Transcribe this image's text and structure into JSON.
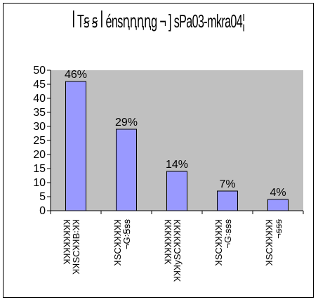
{
  "chart_data": {
    "type": "bar",
    "title": "ꟾ Tꞩ ꞩ ꟾ énsꞑꞑꞑꞑg ¬ ] sPa03-mkra04¦",
    "categories": [
      [
        "ꞰꞰꞰꞰꞰꞰꞰꞰ",
        "ꞰꞰSCꞰꞰB꞉ꞰꞰ"
      ],
      [
        "ꞰSCꞰꞰꞰꞰꞰ",
        "¬G꞉Ꞩꞩꞩ"
      ],
      [
        "ꞰꞰꞰꞰꞰꞰꞰꞰ",
        "ꞰꞰꞰySCꞰꞰꞰꞰꞰ"
      ],
      [
        "ꞰSCꞰꞰꞰꞰꞰ",
        "¬G꞉ꞩꞩꞩ"
      ],
      [
        "ꞰSCꞰꞰꞰꞰꞰ",
        "¬ꞩꞩꞩ"
      ]
    ],
    "values": [
      46,
      29,
      14,
      7,
      4
    ],
    "data_labels": [
      "46%",
      "29%",
      "14%",
      "7%",
      "4%"
    ],
    "ylim": [
      0,
      50
    ],
    "y_ticks": [
      "0",
      "5",
      "10",
      "15",
      "20",
      "25",
      "30",
      "35",
      "40",
      "45",
      "50"
    ],
    "xlabel": "",
    "ylabel": "",
    "grid": false,
    "legend": "none",
    "colors": {
      "bar_fill": "#9999ff",
      "bar_stroke": "#000000",
      "plot_background": "#c0c0c0",
      "frame": "#000000"
    }
  }
}
